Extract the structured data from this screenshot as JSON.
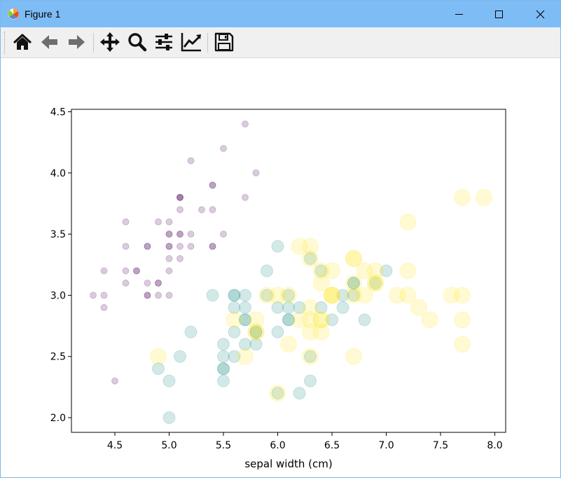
{
  "window": {
    "title": "Figure 1"
  },
  "toolbar": {
    "tools": [
      "home-icon",
      "back-arrow-icon",
      "forward-arrow-icon",
      "pan-icon",
      "zoom-icon",
      "configure-subplots-icon",
      "edit-axes-icon",
      "save-icon"
    ]
  },
  "colors": {
    "setosa": "#440154",
    "versicolor": "#21918c",
    "virginica": "#fde725",
    "titlebar": "#7ebcf6"
  },
  "chart_data": {
    "type": "scatter",
    "xlabel": "sepal width (cm)",
    "ylabel": "",
    "xlim": [
      4.1,
      8.1
    ],
    "ylim": [
      1.88,
      4.52
    ],
    "xticks": [
      "4.5",
      "5.0",
      "5.5",
      "6.0",
      "6.5",
      "7.0",
      "7.5",
      "8.0"
    ],
    "yticks": [
      "2.0",
      "2.5",
      "3.0",
      "3.5",
      "4.0",
      "4.5"
    ],
    "size_encoding": "marker area grows with class",
    "series": [
      {
        "points": [
          [
            5.1,
            3.5
          ],
          [
            4.9,
            3.0
          ],
          [
            4.7,
            3.2
          ],
          [
            4.6,
            3.1
          ],
          [
            5.0,
            3.6
          ],
          [
            5.4,
            3.9
          ],
          [
            4.6,
            3.4
          ],
          [
            5.0,
            3.4
          ],
          [
            4.4,
            2.9
          ],
          [
            4.9,
            3.1
          ],
          [
            5.4,
            3.7
          ],
          [
            4.8,
            3.4
          ],
          [
            4.8,
            3.0
          ],
          [
            4.3,
            3.0
          ],
          [
            5.8,
            4.0
          ],
          [
            5.7,
            4.4
          ],
          [
            5.4,
            3.9
          ],
          [
            5.1,
            3.5
          ],
          [
            5.7,
            3.8
          ],
          [
            5.1,
            3.8
          ],
          [
            5.4,
            3.4
          ],
          [
            5.1,
            3.7
          ],
          [
            4.6,
            3.6
          ],
          [
            5.1,
            3.3
          ],
          [
            4.8,
            3.4
          ],
          [
            5.0,
            3.0
          ],
          [
            5.0,
            3.4
          ],
          [
            5.2,
            3.5
          ],
          [
            5.2,
            3.4
          ],
          [
            4.7,
            3.2
          ],
          [
            4.8,
            3.1
          ],
          [
            5.4,
            3.4
          ],
          [
            5.2,
            4.1
          ],
          [
            5.5,
            4.2
          ],
          [
            4.9,
            3.1
          ],
          [
            5.0,
            3.2
          ],
          [
            5.5,
            3.5
          ],
          [
            4.9,
            3.6
          ],
          [
            4.4,
            3.0
          ],
          [
            5.1,
            3.4
          ],
          [
            5.0,
            3.5
          ],
          [
            4.5,
            2.3
          ],
          [
            4.4,
            3.2
          ],
          [
            5.0,
            3.5
          ],
          [
            5.1,
            3.8
          ],
          [
            4.8,
            3.0
          ],
          [
            5.1,
            3.8
          ],
          [
            4.6,
            3.2
          ],
          [
            5.3,
            3.7
          ],
          [
            5.0,
            3.3
          ]
        ]
      },
      {
        "points": [
          [
            7.0,
            3.2
          ],
          [
            6.4,
            3.2
          ],
          [
            6.9,
            3.1
          ],
          [
            5.5,
            2.3
          ],
          [
            6.5,
            2.8
          ],
          [
            5.7,
            2.8
          ],
          [
            6.3,
            3.3
          ],
          [
            4.9,
            2.4
          ],
          [
            6.6,
            2.9
          ],
          [
            5.2,
            2.7
          ],
          [
            5.0,
            2.0
          ],
          [
            5.9,
            3.0
          ],
          [
            6.0,
            2.2
          ],
          [
            6.1,
            2.9
          ],
          [
            5.6,
            2.9
          ],
          [
            6.7,
            3.1
          ],
          [
            5.6,
            3.0
          ],
          [
            5.8,
            2.7
          ],
          [
            6.2,
            2.2
          ],
          [
            5.6,
            2.5
          ],
          [
            5.9,
            3.2
          ],
          [
            6.1,
            2.8
          ],
          [
            6.3,
            2.5
          ],
          [
            6.1,
            2.8
          ],
          [
            6.4,
            2.9
          ],
          [
            6.6,
            3.0
          ],
          [
            6.8,
            2.8
          ],
          [
            6.7,
            3.0
          ],
          [
            6.0,
            2.9
          ],
          [
            5.7,
            2.6
          ],
          [
            5.5,
            2.4
          ],
          [
            5.5,
            2.4
          ],
          [
            5.8,
            2.7
          ],
          [
            6.0,
            2.7
          ],
          [
            5.4,
            3.0
          ],
          [
            6.0,
            3.4
          ],
          [
            6.7,
            3.1
          ],
          [
            6.3,
            2.3
          ],
          [
            5.6,
            3.0
          ],
          [
            5.5,
            2.5
          ],
          [
            5.5,
            2.6
          ],
          [
            6.1,
            3.0
          ],
          [
            5.8,
            2.6
          ],
          [
            5.0,
            2.3
          ],
          [
            5.6,
            2.7
          ],
          [
            5.7,
            3.0
          ],
          [
            5.7,
            2.9
          ],
          [
            6.2,
            2.9
          ],
          [
            5.1,
            2.5
          ],
          [
            5.7,
            2.8
          ]
        ]
      },
      {
        "points": [
          [
            6.3,
            3.3
          ],
          [
            5.8,
            2.7
          ],
          [
            7.1,
            3.0
          ],
          [
            6.3,
            2.9
          ],
          [
            6.5,
            3.0
          ],
          [
            7.6,
            3.0
          ],
          [
            4.9,
            2.5
          ],
          [
            7.3,
            2.9
          ],
          [
            6.7,
            2.5
          ],
          [
            7.2,
            3.6
          ],
          [
            6.5,
            3.2
          ],
          [
            6.4,
            2.7
          ],
          [
            6.8,
            3.0
          ],
          [
            5.7,
            2.5
          ],
          [
            5.8,
            2.8
          ],
          [
            6.4,
            3.2
          ],
          [
            6.5,
            3.0
          ],
          [
            7.7,
            3.8
          ],
          [
            7.7,
            2.6
          ],
          [
            6.0,
            2.2
          ],
          [
            6.9,
            3.2
          ],
          [
            5.6,
            2.8
          ],
          [
            7.7,
            2.8
          ],
          [
            6.3,
            2.7
          ],
          [
            6.7,
            3.3
          ],
          [
            7.2,
            3.2
          ],
          [
            6.2,
            2.8
          ],
          [
            6.1,
            3.0
          ],
          [
            6.4,
            2.8
          ],
          [
            7.2,
            3.0
          ],
          [
            7.4,
            2.8
          ],
          [
            7.9,
            3.8
          ],
          [
            6.4,
            2.8
          ],
          [
            6.3,
            2.8
          ],
          [
            6.1,
            2.6
          ],
          [
            7.7,
            3.0
          ],
          [
            6.3,
            3.4
          ],
          [
            6.4,
            3.1
          ],
          [
            6.0,
            3.0
          ],
          [
            6.9,
            3.1
          ],
          [
            6.7,
            3.1
          ],
          [
            6.9,
            3.1
          ],
          [
            5.8,
            2.7
          ],
          [
            6.8,
            3.2
          ],
          [
            6.7,
            3.3
          ],
          [
            6.7,
            3.0
          ],
          [
            6.3,
            2.5
          ],
          [
            6.5,
            3.0
          ],
          [
            6.2,
            3.4
          ],
          [
            5.9,
            3.0
          ]
        ]
      }
    ]
  }
}
